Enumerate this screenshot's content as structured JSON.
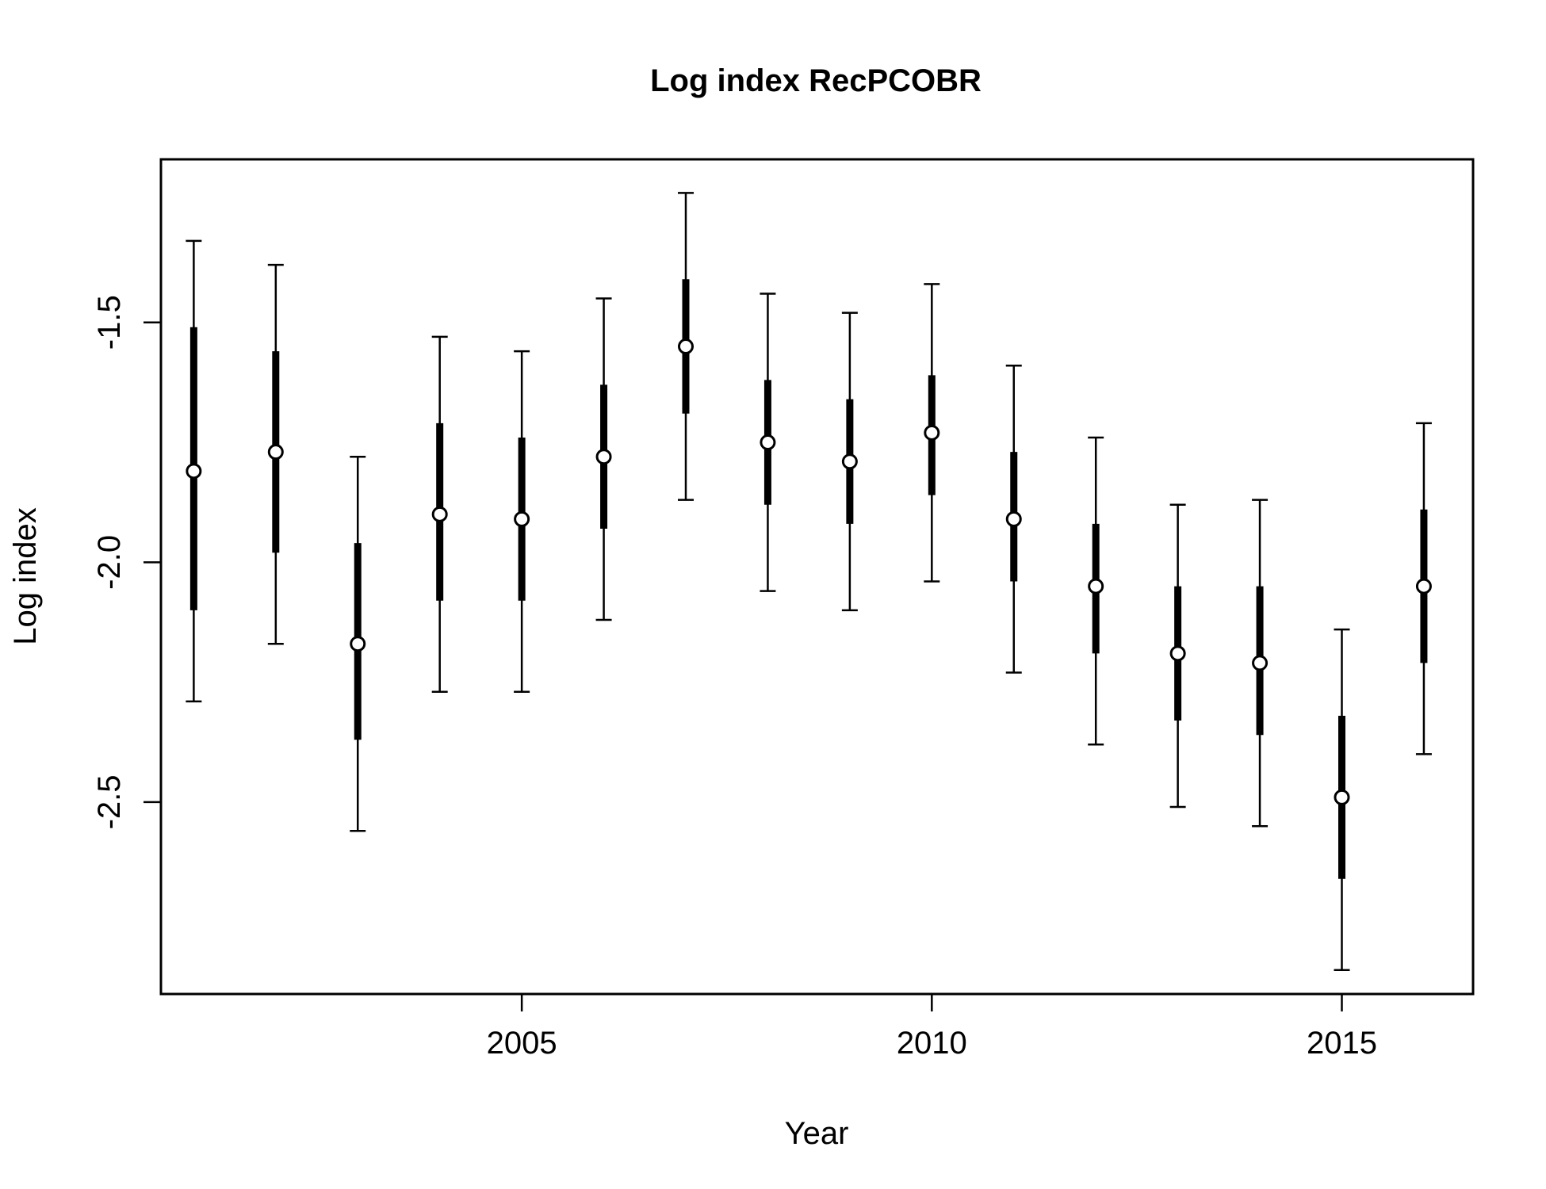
{
  "chart_data": {
    "type": "scatter",
    "title": "Log index RecPCOBR",
    "xlabel": "Year",
    "ylabel": "Log index",
    "xlim": [
      2000.6,
      2016.6
    ],
    "ylim": [
      -2.9,
      -1.16
    ],
    "x_ticks": [
      2005,
      2010,
      2015
    ],
    "y_ticks": [
      -1.5,
      -2.0,
      -2.5
    ],
    "x_tick_labels": [
      "2005",
      "2010",
      "2015"
    ],
    "y_tick_labels": [
      "-1.5",
      "-2.0",
      "-2.5"
    ],
    "grid": false,
    "point_marker": "open-circle",
    "series": [
      {
        "x": [
          2001,
          2002,
          2003,
          2004,
          2005,
          2006,
          2007,
          2008,
          2009,
          2010,
          2011,
          2012,
          2013,
          2014,
          2015,
          2016
        ],
        "y": [
          -1.81,
          -1.77,
          -2.17,
          -1.9,
          -1.91,
          -1.78,
          -1.55,
          -1.75,
          -1.79,
          -1.73,
          -1.91,
          -2.05,
          -2.19,
          -2.21,
          -2.49,
          -2.05
        ],
        "inner_lo": [
          -2.1,
          -1.98,
          -2.37,
          -2.08,
          -2.08,
          -1.93,
          -1.69,
          -1.88,
          -1.92,
          -1.86,
          -2.04,
          -2.19,
          -2.33,
          -2.36,
          -2.66,
          -2.21
        ],
        "inner_hi": [
          -1.51,
          -1.56,
          -1.96,
          -1.71,
          -1.74,
          -1.63,
          -1.41,
          -1.62,
          -1.66,
          -1.61,
          -1.77,
          -1.92,
          -2.05,
          -2.05,
          -2.32,
          -1.89
        ],
        "outer_lo": [
          -2.29,
          -2.17,
          -2.56,
          -2.27,
          -2.27,
          -2.12,
          -1.87,
          -2.06,
          -2.1,
          -2.04,
          -2.23,
          -2.38,
          -2.51,
          -2.55,
          -2.85,
          -2.4
        ],
        "outer_hi": [
          -1.33,
          -1.38,
          -1.78,
          -1.53,
          -1.56,
          -1.45,
          -1.23,
          -1.44,
          -1.48,
          -1.42,
          -1.59,
          -1.74,
          -1.88,
          -1.87,
          -2.14,
          -1.71
        ]
      }
    ]
  }
}
